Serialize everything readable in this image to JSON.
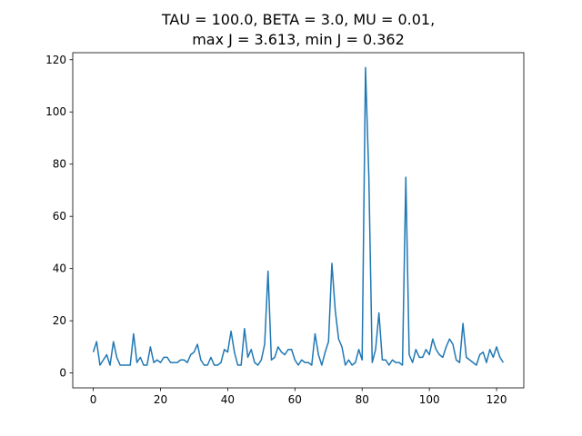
{
  "chart_data": {
    "type": "line",
    "title_lines": [
      "TAU = 100.0, BETA = 3.0, MU = 0.01,",
      "max J = 3.613, min J = 0.362"
    ],
    "xlabel": "",
    "ylabel": "",
    "xlim": [
      -6.1,
      128.1
    ],
    "ylim": [
      -5.7,
      122.7
    ],
    "x_ticks": [
      0,
      20,
      40,
      60,
      80,
      100,
      120
    ],
    "y_ticks": [
      0,
      20,
      40,
      60,
      80,
      100,
      120
    ],
    "grid": false,
    "line_color": "#1f77b4",
    "series": [
      {
        "values": [
          8,
          12,
          3,
          5,
          7,
          3,
          12,
          6,
          3,
          3,
          3,
          3,
          15,
          4,
          6,
          3,
          3,
          10,
          4,
          5,
          4,
          6,
          6,
          4,
          4,
          4,
          5,
          5,
          4,
          7,
          8,
          11,
          5,
          3,
          3,
          6,
          3,
          3,
          4,
          9,
          8,
          16,
          8,
          3,
          3,
          17,
          6,
          9,
          4,
          3,
          5,
          11,
          39,
          5,
          6,
          10,
          8,
          7,
          9,
          9,
          5,
          3,
          5,
          4,
          4,
          3,
          15,
          7,
          3,
          8,
          12,
          42,
          24,
          13,
          10,
          3,
          5,
          3,
          4,
          9,
          5,
          117,
          75,
          4,
          9,
          23,
          5,
          5,
          3,
          5,
          4,
          4,
          3,
          75,
          7,
          4,
          9,
          6,
          6,
          9,
          7,
          13,
          9,
          7,
          6,
          10,
          13,
          11,
          5,
          4,
          19,
          6,
          5,
          4,
          3,
          7,
          8,
          4,
          9,
          6,
          10,
          6,
          4
        ]
      }
    ]
  }
}
